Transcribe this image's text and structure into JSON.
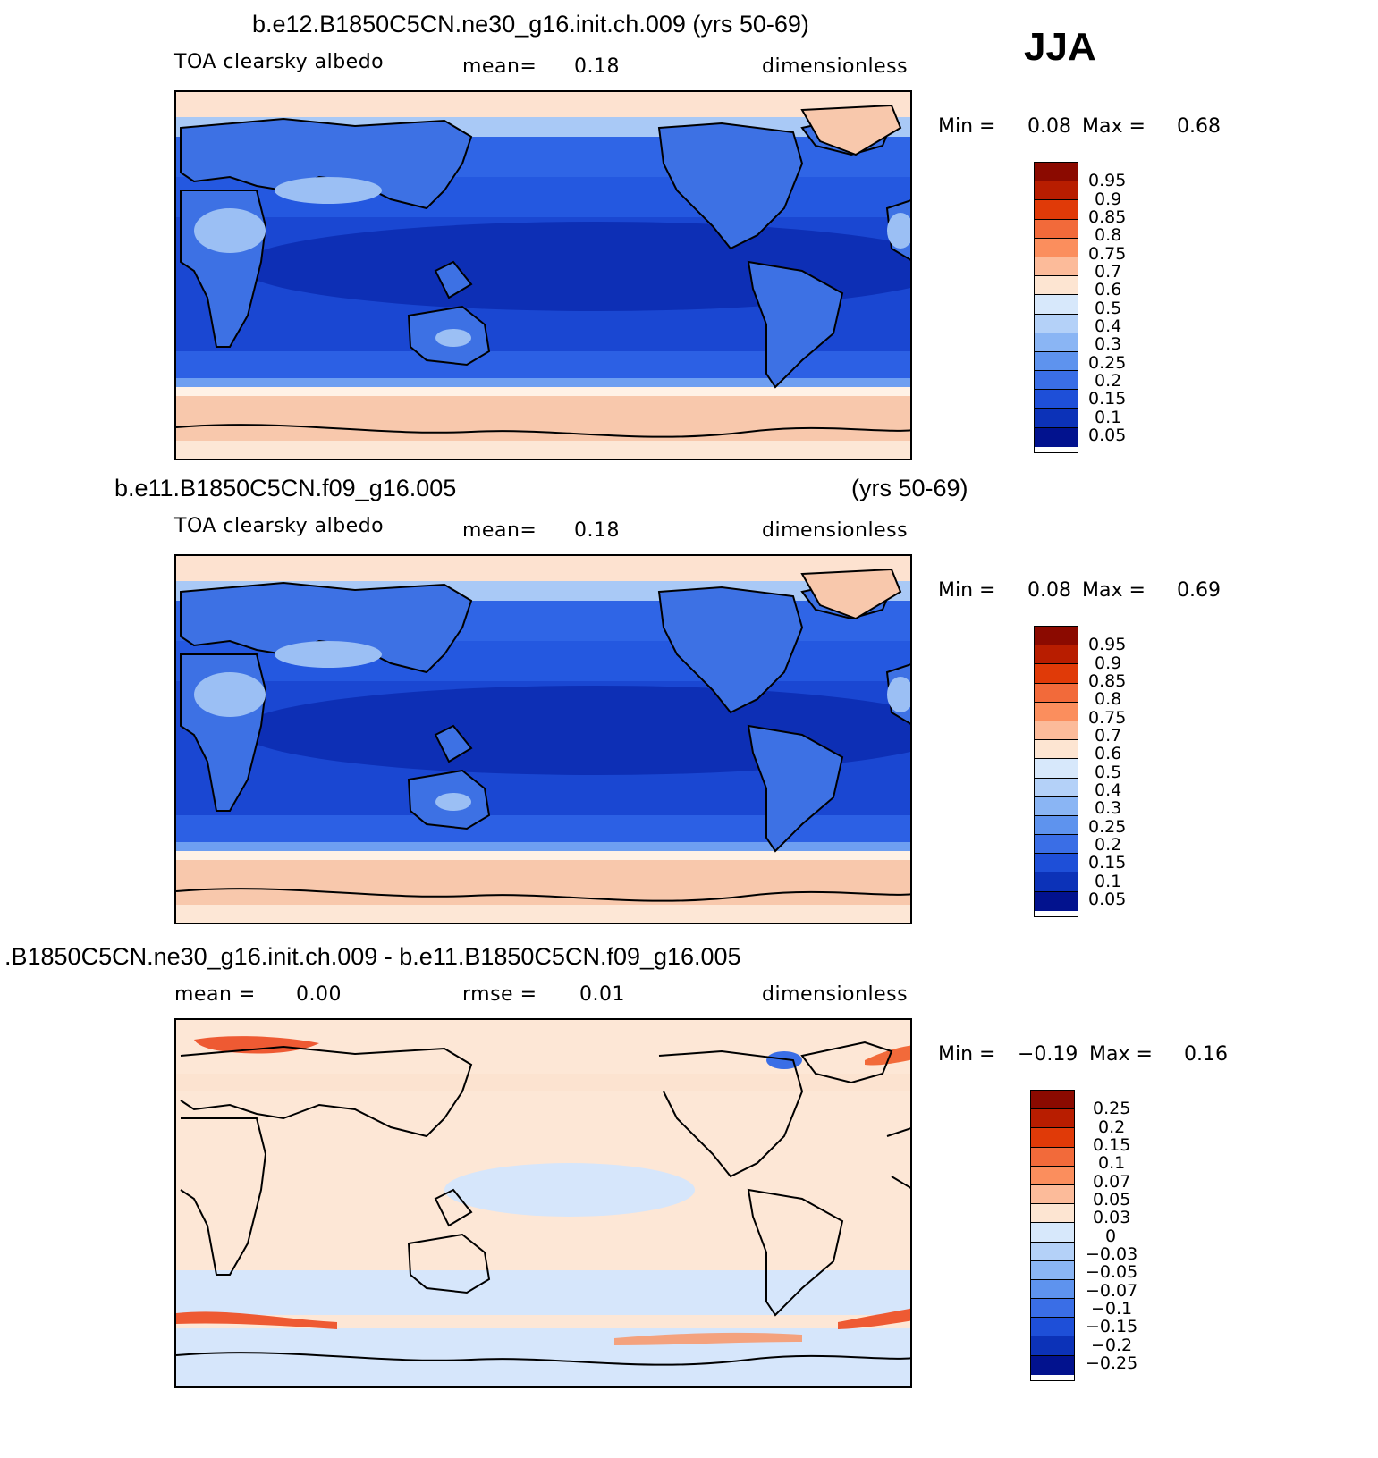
{
  "season": "JJA",
  "panels": [
    {
      "title": "b.e12.B1850C5CN.ne30_g16.init.ch.009 (yrs 50-69)",
      "variable": "TOA clearsky albedo",
      "stat1_label": "mean=",
      "stat1_value": "0.18",
      "stat2_label": "",
      "stat2_value": "",
      "units": "dimensionless",
      "min_label": "Min =",
      "min_value": "0.08",
      "max_label": "Max =",
      "max_value": "0.68",
      "colorbar_labels": [
        "0.95",
        "0.9",
        "0.85",
        "0.8",
        "0.75",
        "0.7",
        "0.6",
        "0.5",
        "0.4",
        "0.3",
        "0.25",
        "0.2",
        "0.15",
        "0.1",
        "0.05"
      ]
    },
    {
      "title": "b.e11.B1850C5CN.f09_g16.005",
      "title_right": "(yrs 50-69)",
      "variable": "TOA clearsky albedo",
      "stat1_label": "mean=",
      "stat1_value": "0.18",
      "stat2_label": "",
      "stat2_value": "",
      "units": "dimensionless",
      "min_label": "Min =",
      "min_value": "0.08",
      "max_label": "Max =",
      "max_value": "0.69",
      "colorbar_labels": [
        "0.95",
        "0.9",
        "0.85",
        "0.8",
        "0.75",
        "0.7",
        "0.6",
        "0.5",
        "0.4",
        "0.3",
        "0.25",
        "0.2",
        "0.15",
        "0.1",
        "0.05"
      ]
    },
    {
      "title": ".B1850C5CN.ne30_g16.init.ch.009 - b.e11.B1850C5CN.f09_g16.005",
      "variable": "",
      "stat1_label": "mean =",
      "stat1_value": "0.00",
      "stat2_label": "rmse =",
      "stat2_value": "0.01",
      "units": "dimensionless",
      "min_label": "Min =",
      "min_value": "−0.19",
      "max_label": "Max =",
      "max_value": "0.16",
      "colorbar_labels": [
        "0.25",
        "0.2",
        "0.15",
        "0.1",
        "0.07",
        "0.05",
        "0.03",
        "0",
        "−0.03",
        "−0.05",
        "−0.07",
        "−0.1",
        "−0.15",
        "−0.2",
        "−0.25"
      ]
    }
  ],
  "colors": {
    "colorbar": [
      "#8b0a00",
      "#b81d00",
      "#e03a08",
      "#f26a3a",
      "#fb8e5d",
      "#fcbb9a",
      "#fde5d2",
      "#fff4ea",
      "#d7e8fb",
      "#b4d1f8",
      "#8ab5f4",
      "#5e93ee",
      "#3a6ee6",
      "#1e4fd8",
      "#0c32b8",
      "#02128e"
    ],
    "ocean_tropics": "#0d2fb5",
    "ocean_mid": "#1a47d2",
    "ocean_highlat": "#2f65e6",
    "land": "#3d71e4",
    "desert": "#9bbff4",
    "ice_cap": "#f8c8ac",
    "diff_background": "#fde7d6",
    "diff_negative": "#d6e6fb",
    "diff_positive_band": "#ee5a33"
  }
}
